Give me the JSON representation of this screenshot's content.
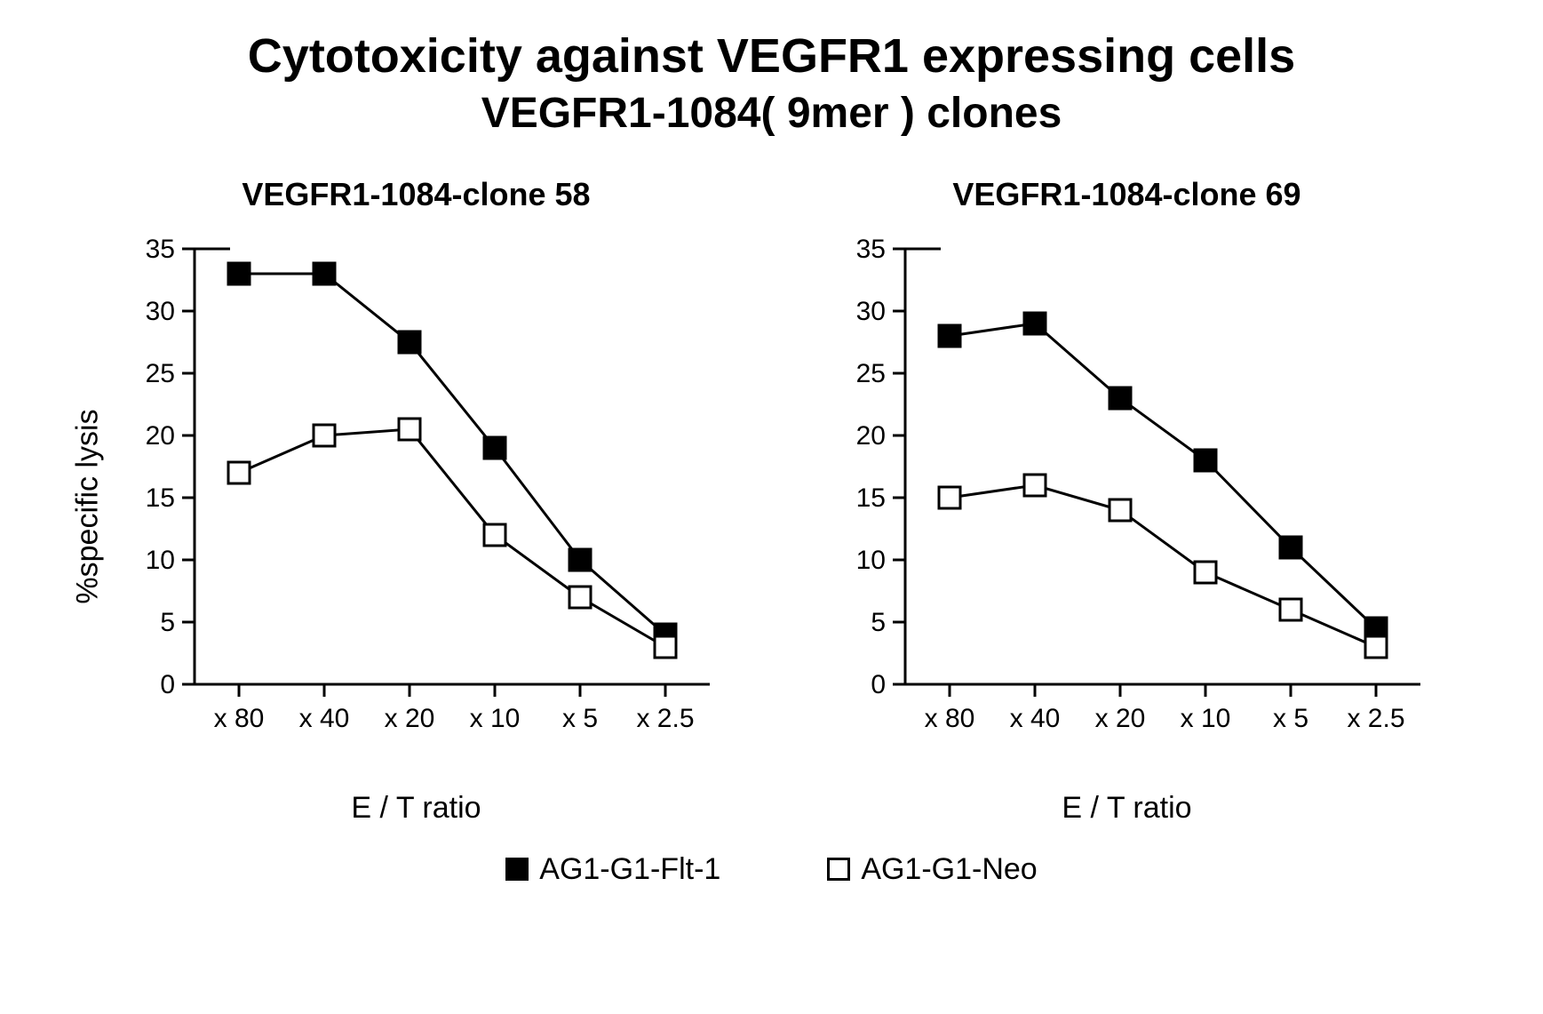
{
  "title_line1": "Cytotoxicity against VEGFR1 expressing cells",
  "title_line2": "VEGFR1-1084( 9mer ) clones",
  "ylabel": "%specific lysis",
  "xlabel": "E / T ratio",
  "legend": {
    "series1": "AG1-G1-Flt-1",
    "series2": "AG1-G1-Neo"
  },
  "styling": {
    "background_color": "#ffffff",
    "axis_color": "#000000",
    "line_color": "#000000",
    "line_width": 3,
    "marker_size": 24,
    "marker_border": 3,
    "series1_fill": "#000000",
    "series2_fill": "#ffffff",
    "title_fontsize": 54,
    "subtitle_fontsize": 48,
    "chart_title_fontsize": 36,
    "axis_label_fontsize": 34,
    "tick_fontsize": 30,
    "legend_fontsize": 34,
    "font_family": "Arial"
  },
  "axes": {
    "ylim": [
      0,
      35
    ],
    "ytick_step": 5,
    "yticks": [
      0,
      5,
      10,
      15,
      20,
      25,
      30,
      35
    ],
    "x_categories": [
      "x 80",
      "x 40",
      "x 20",
      "x 10",
      "x 5",
      "x 2.5"
    ],
    "grid": false
  },
  "charts": [
    {
      "title": "VEGFR1-1084-clone 58",
      "show_ylabel": true,
      "series": [
        {
          "key": "series1",
          "marker": "filled",
          "values": [
            33,
            33,
            27.5,
            19,
            10,
            4
          ]
        },
        {
          "key": "series2",
          "marker": "open",
          "values": [
            17,
            20,
            20.5,
            12,
            7,
            3
          ]
        }
      ]
    },
    {
      "title": "VEGFR1-1084-clone 69",
      "show_ylabel": false,
      "series": [
        {
          "key": "series1",
          "marker": "filled",
          "values": [
            28,
            29,
            23,
            18,
            11,
            4.5
          ]
        },
        {
          "key": "series2",
          "marker": "open",
          "values": [
            15,
            16,
            14,
            9,
            6,
            3
          ]
        }
      ]
    }
  ]
}
